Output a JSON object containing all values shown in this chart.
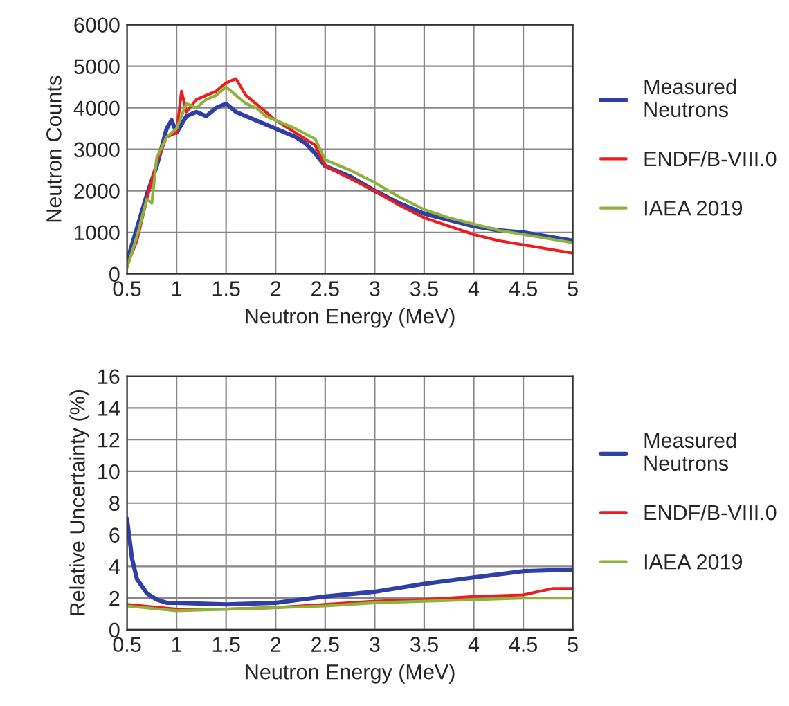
{
  "chart_data": [
    {
      "type": "line",
      "xlabel": "Neutron Energy (MeV)",
      "ylabel": "Neutron Counts",
      "xlim": [
        0.5,
        5
      ],
      "xticks": [
        {
          "value": 0.5,
          "label": "0.5"
        },
        1,
        {
          "value": 1.5,
          "label": "1.5"
        },
        2,
        {
          "value": 2.5,
          "label": "2.5"
        },
        3,
        {
          "value": 3.5,
          "label": "3.5"
        },
        4,
        {
          "value": 4.5,
          "label": "4.5"
        },
        5
      ],
      "ylim": [
        0,
        6000
      ],
      "yticks": [
        0,
        1000,
        2000,
        3000,
        4000,
        5000,
        6000
      ],
      "grid": true,
      "legend": "right",
      "series": [
        {
          "name": "Measured\nNeutrons",
          "color": "#2e3fa8",
          "x": [
            0.5,
            0.6,
            0.7,
            0.8,
            0.9,
            0.95,
            1.0,
            1.1,
            1.2,
            1.3,
            1.4,
            1.5,
            1.6,
            1.7,
            1.8,
            1.9,
            2.0,
            2.1,
            2.2,
            2.3,
            2.4,
            2.5,
            2.75,
            3.0,
            3.25,
            3.5,
            3.75,
            4.0,
            4.25,
            4.5,
            4.75,
            5.0
          ],
          "values": [
            300,
            1100,
            1900,
            2600,
            3500,
            3700,
            3400,
            3800,
            3900,
            3800,
            4000,
            4100,
            3900,
            3800,
            3700,
            3600,
            3500,
            3400,
            3300,
            3150,
            2900,
            2600,
            2350,
            2000,
            1700,
            1450,
            1300,
            1150,
            1050,
            1000,
            900,
            800
          ]
        },
        {
          "name": "ENDF/B-VIII.0",
          "color": "#ee1c1c",
          "x": [
            0.5,
            0.6,
            0.7,
            0.8,
            0.9,
            1.0,
            1.05,
            1.1,
            1.2,
            1.3,
            1.4,
            1.5,
            1.6,
            1.7,
            1.8,
            1.9,
            2.0,
            2.2,
            2.4,
            2.5,
            2.75,
            3.0,
            3.25,
            3.5,
            3.75,
            4.0,
            4.25,
            4.5,
            4.75,
            5.0
          ],
          "values": [
            200,
            800,
            1800,
            2700,
            3300,
            3400,
            4400,
            3900,
            4200,
            4300,
            4400,
            4600,
            4700,
            4300,
            4100,
            3900,
            3700,
            3400,
            3100,
            2600,
            2300,
            2000,
            1650,
            1350,
            1150,
            950,
            800,
            700,
            600,
            500
          ]
        },
        {
          "name": "IAEA 2019",
          "color": "#8db33a",
          "x": [
            0.5,
            0.6,
            0.7,
            0.75,
            0.8,
            0.9,
            1.0,
            1.1,
            1.2,
            1.3,
            1.4,
            1.5,
            1.6,
            1.7,
            1.8,
            1.9,
            2.0,
            2.2,
            2.4,
            2.5,
            2.75,
            3.0,
            3.25,
            3.5,
            3.75,
            4.0,
            4.25,
            4.5,
            4.75,
            5.0
          ],
          "values": [
            150,
            900,
            1800,
            1700,
            2800,
            3300,
            3500,
            4100,
            4000,
            4200,
            4300,
            4500,
            4300,
            4100,
            4000,
            3800,
            3700,
            3500,
            3250,
            2750,
            2500,
            2200,
            1850,
            1550,
            1350,
            1200,
            1050,
            950,
            850,
            750
          ]
        }
      ]
    },
    {
      "type": "line",
      "xlabel": "Neutron Energy (MeV)",
      "ylabel": "Relative Uncertainty (%)",
      "xlim": [
        0.5,
        5
      ],
      "xticks": [
        {
          "value": 0.5,
          "label": "0.5"
        },
        1,
        {
          "value": 1.5,
          "label": "1.5"
        },
        2,
        {
          "value": 2.5,
          "label": "2.5"
        },
        3,
        {
          "value": 3.5,
          "label": "3.5"
        },
        4,
        {
          "value": 4.5,
          "label": "4.5"
        },
        5
      ],
      "ylim": [
        0,
        16
      ],
      "yticks": [
        0,
        2,
        4,
        6,
        8,
        10,
        12,
        14,
        16
      ],
      "grid": true,
      "legend": "right",
      "series": [
        {
          "name": "Measured\nNeutrons",
          "color": "#2e3fa8",
          "x": [
            0.5,
            0.55,
            0.6,
            0.7,
            0.8,
            0.9,
            1.0,
            1.5,
            2.0,
            2.5,
            3.0,
            3.5,
            4.0,
            4.5,
            5.0
          ],
          "values": [
            7,
            4.5,
            3.2,
            2.3,
            1.9,
            1.7,
            1.7,
            1.6,
            1.7,
            2.1,
            2.4,
            2.9,
            3.3,
            3.7,
            3.8
          ]
        },
        {
          "name": "ENDF/B-VIII.0",
          "color": "#ee1c1c",
          "x": [
            0.5,
            1.0,
            1.5,
            2.0,
            2.5,
            3.0,
            3.5,
            4.0,
            4.5,
            4.8,
            5.0
          ],
          "values": [
            1.6,
            1.3,
            1.3,
            1.4,
            1.6,
            1.8,
            1.9,
            2.1,
            2.2,
            2.6,
            2.6
          ]
        },
        {
          "name": "IAEA 2019",
          "color": "#8db33a",
          "x": [
            0.5,
            1.0,
            1.5,
            2.0,
            2.5,
            3.0,
            3.5,
            4.0,
            4.5,
            5.0
          ],
          "values": [
            1.5,
            1.2,
            1.3,
            1.4,
            1.5,
            1.7,
            1.8,
            1.9,
            2.0,
            2.0
          ]
        }
      ]
    }
  ]
}
